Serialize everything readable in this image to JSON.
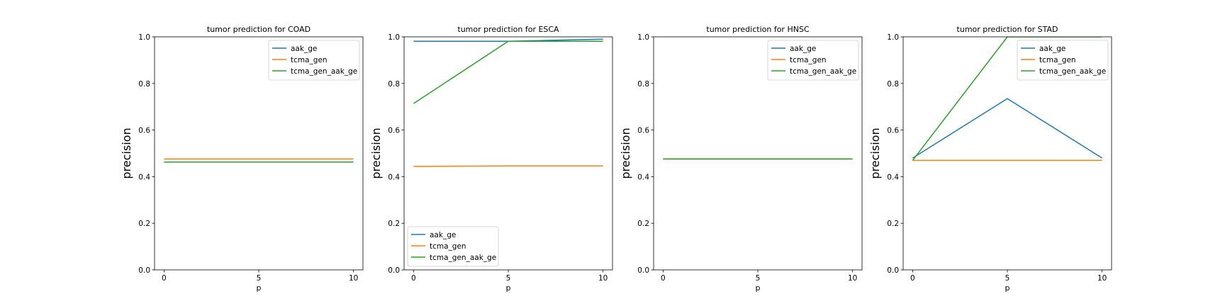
{
  "chart_data": [
    {
      "type": "line",
      "title": "tumor prediction for COAD",
      "xlabel": "p",
      "ylabel": "precision",
      "x": [
        0,
        5,
        10
      ],
      "xticks": [
        0,
        5,
        10
      ],
      "xlim": [
        -0.5,
        10.5
      ],
      "ylim": [
        0.0,
        1.0
      ],
      "yticks": [
        "0.0",
        "0.2",
        "0.4",
        "0.6",
        "0.8",
        "1.0"
      ],
      "legend": "top-right",
      "grid": false,
      "series": [
        {
          "name": "aak_ge",
          "color": "#1f77b4",
          "values": [
            0.463,
            0.463,
            0.463
          ]
        },
        {
          "name": "tcma_gen",
          "color": "#ff7f0e",
          "values": [
            0.476,
            0.476,
            0.476
          ]
        },
        {
          "name": "tcma_gen_aak_ge",
          "color": "#2ca02c",
          "values": [
            0.463,
            0.463,
            0.463
          ]
        }
      ]
    },
    {
      "type": "line",
      "title": "tumor prediction for ESCA",
      "xlabel": "p",
      "ylabel": "precision",
      "x": [
        0,
        5,
        10
      ],
      "xticks": [
        0,
        5,
        10
      ],
      "xlim": [
        -0.5,
        10.5
      ],
      "ylim": [
        0.0,
        1.0
      ],
      "yticks": [
        "0.0",
        "0.2",
        "0.4",
        "0.6",
        "0.8",
        "1.0"
      ],
      "legend": "bottom-left",
      "grid": false,
      "series": [
        {
          "name": "aak_ge",
          "color": "#1f77b4",
          "values": [
            0.981,
            0.981,
            0.99
          ]
        },
        {
          "name": "tcma_gen",
          "color": "#ff7f0e",
          "values": [
            0.444,
            0.446,
            0.446
          ]
        },
        {
          "name": "tcma_gen_aak_ge",
          "color": "#2ca02c",
          "values": [
            0.714,
            0.981,
            0.981
          ]
        }
      ]
    },
    {
      "type": "line",
      "title": "tumor prediction for HNSC",
      "xlabel": "p",
      "ylabel": "precision",
      "x": [
        0,
        5,
        10
      ],
      "xticks": [
        0,
        5,
        10
      ],
      "xlim": [
        -0.5,
        10.5
      ],
      "ylim": [
        0.0,
        1.0
      ],
      "yticks": [
        "0.0",
        "0.2",
        "0.4",
        "0.6",
        "0.8",
        "1.0"
      ],
      "legend": "top-right",
      "grid": false,
      "series": [
        {
          "name": "aak_ge",
          "color": "#1f77b4",
          "values": [
            0.476,
            0.476,
            0.476
          ]
        },
        {
          "name": "tcma_gen",
          "color": "#ff7f0e",
          "values": [
            0.476,
            0.476,
            0.476
          ]
        },
        {
          "name": "tcma_gen_aak_ge",
          "color": "#2ca02c",
          "values": [
            0.476,
            0.476,
            0.476
          ]
        }
      ]
    },
    {
      "type": "line",
      "title": "tumor prediction for STAD",
      "xlabel": "p",
      "ylabel": "precision",
      "x": [
        0,
        5,
        10
      ],
      "xticks": [
        0,
        5,
        10
      ],
      "xlim": [
        -0.5,
        10.5
      ],
      "ylim": [
        0.0,
        1.0
      ],
      "yticks": [
        "0.0",
        "0.2",
        "0.4",
        "0.6",
        "0.8",
        "1.0"
      ],
      "legend": "top-right",
      "grid": false,
      "series": [
        {
          "name": "aak_ge",
          "color": "#1f77b4",
          "values": [
            0.48,
            0.735,
            0.48
          ]
        },
        {
          "name": "tcma_gen",
          "color": "#ff7f0e",
          "values": [
            0.47,
            0.47,
            0.47
          ]
        },
        {
          "name": "tcma_gen_aak_ge",
          "color": "#2ca02c",
          "values": [
            0.47,
            1.0,
            1.0
          ]
        }
      ]
    }
  ]
}
